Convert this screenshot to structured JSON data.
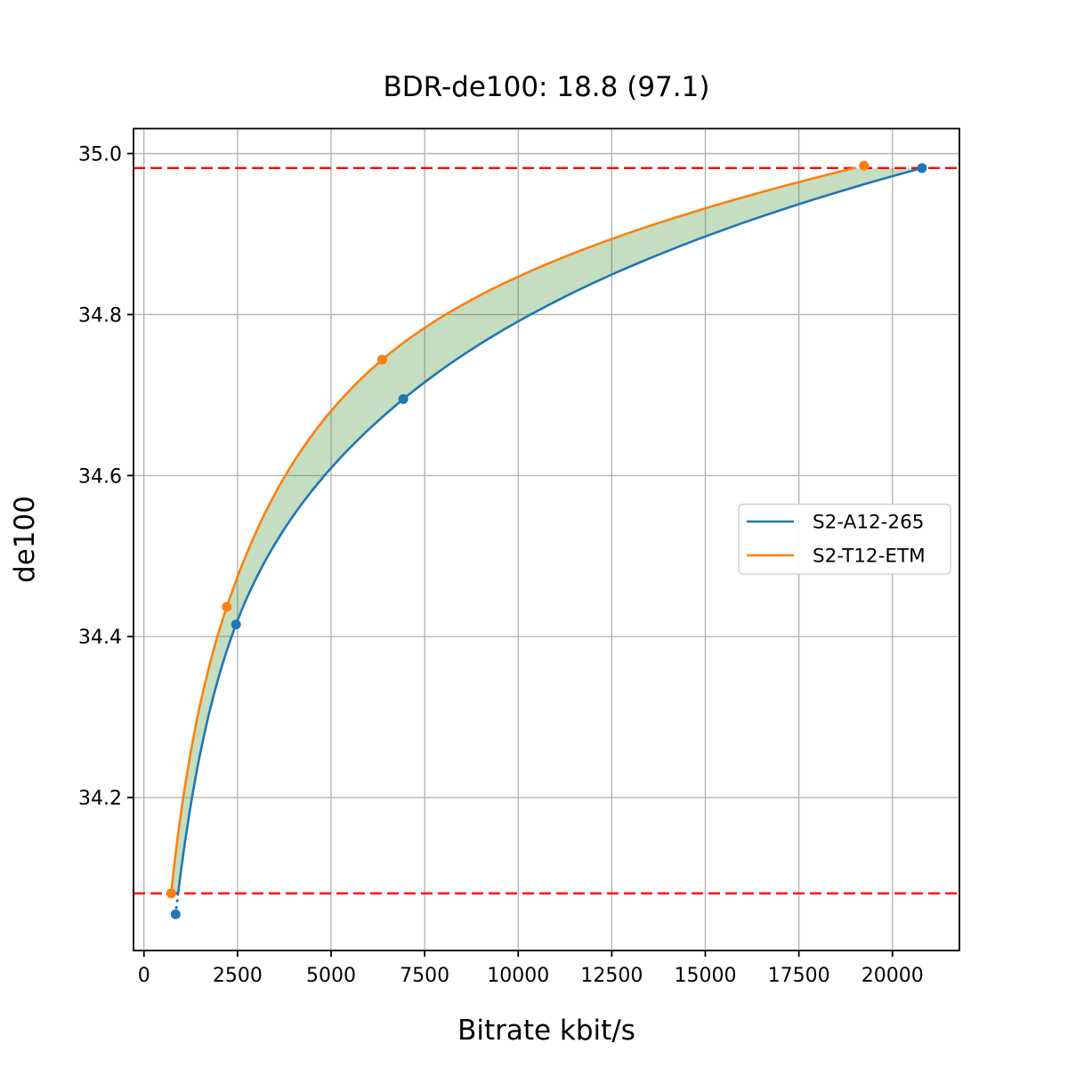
{
  "chart_data": {
    "type": "line",
    "title": "BDR-de100: 18.8 (97.1)",
    "xlabel": "Bitrate kbit/s",
    "ylabel": "de100",
    "xlim": [
      -280,
      21790
    ],
    "ylim": [
      34.01,
      35.031
    ],
    "xticks": [
      0,
      2500,
      5000,
      7500,
      10000,
      12500,
      15000,
      17500,
      20000
    ],
    "yticks": [
      34.2,
      34.4,
      34.6,
      34.8,
      35.0
    ],
    "grid": true,
    "grid_color": "#b0b0b0",
    "legend_position": "center-right",
    "series": [
      {
        "name": "S2-A12-265",
        "color": "#1f77b4",
        "points": [
          [
            845,
            34.055
          ],
          [
            2460,
            34.415
          ],
          [
            6930,
            34.695
          ],
          [
            20790,
            34.982
          ]
        ]
      },
      {
        "name": "S2-T12-ETM",
        "color": "#ff7f0e",
        "points": [
          [
            726,
            34.081
          ],
          [
            2213,
            34.437
          ],
          [
            6366,
            34.744
          ],
          [
            19240,
            34.985
          ]
        ]
      }
    ],
    "overlap_bounds": {
      "low": 34.081,
      "high": 34.982,
      "color": "#ff0000",
      "style": "dashed"
    },
    "fill_between": {
      "color": "#3f8e2f",
      "opacity": 0.3
    }
  }
}
